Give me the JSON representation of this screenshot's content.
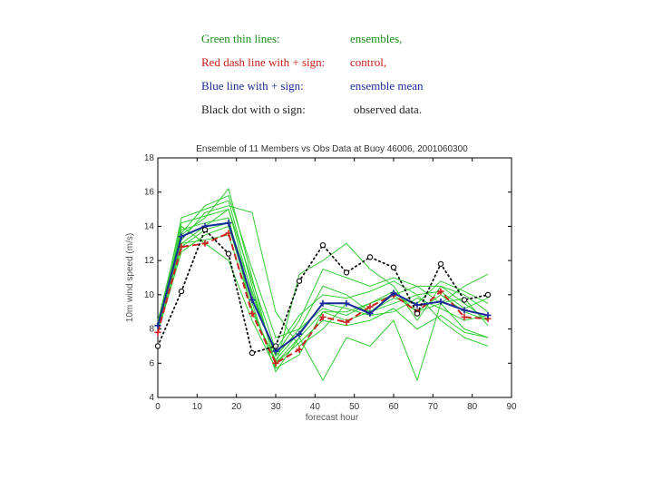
{
  "legend": {
    "green_label": "Green thin lines:",
    "green_value": "ensembles,",
    "red_label": "Red dash line with + sign:",
    "red_value": "control,",
    "blue_label": "Blue line with + sign:",
    "blue_value": "ensemble mean",
    "black_label": "Black dot with o sign:",
    "black_value": "observed data."
  },
  "chart_data": {
    "type": "line",
    "title": "Ensemble of 11 Members vs Obs Data at Buoy 46006, 2001060300",
    "xlabel": "forecast hour",
    "ylabel": "10m wind speed (m/s)",
    "xlim": [
      0,
      90
    ],
    "ylim": [
      4,
      18
    ],
    "xticks": [
      0,
      10,
      20,
      30,
      40,
      50,
      60,
      70,
      80,
      90
    ],
    "yticks": [
      4,
      6,
      8,
      10,
      12,
      14,
      16,
      18
    ],
    "grid": false,
    "colors": {
      "ensemble": "#33cc33",
      "control": "#cc2222",
      "mean": "#1a2a99",
      "observed": "#111111"
    },
    "ensembles": [
      {
        "x": [
          0,
          6,
          12,
          18,
          24,
          30,
          36,
          42,
          48,
          54,
          60,
          66,
          72,
          78,
          84
        ],
        "y": [
          8.0,
          14.5,
          15.0,
          15.5,
          10.5,
          6.0,
          7.5,
          9.0,
          9.0,
          9.5,
          10.0,
          9.0,
          10.0,
          9.0,
          8.5
        ]
      },
      {
        "x": [
          0,
          6,
          12,
          18,
          24,
          30,
          36,
          42,
          48,
          54,
          60,
          66,
          72,
          78,
          84
        ],
        "y": [
          8.5,
          13.5,
          14.5,
          16.2,
          11.0,
          5.8,
          11.2,
          12.0,
          13.0,
          11.5,
          10.5,
          8.5,
          10.5,
          9.5,
          8.5
        ]
      },
      {
        "x": [
          0,
          6,
          12,
          18,
          24,
          30,
          36,
          42,
          48,
          54,
          60,
          66,
          72,
          78,
          84
        ],
        "y": [
          8.2,
          13.0,
          14.0,
          15.0,
          10.0,
          6.5,
          8.5,
          11.5,
          11.0,
          10.5,
          11.0,
          10.5,
          9.5,
          10.5,
          11.2
        ]
      },
      {
        "x": [
          0,
          6,
          12,
          18,
          24,
          30,
          36,
          42,
          48,
          54,
          60,
          66,
          72,
          78,
          84
        ],
        "y": [
          7.8,
          12.5,
          13.5,
          14.0,
          9.5,
          5.5,
          7.5,
          5.0,
          7.5,
          7.0,
          8.5,
          5.0,
          9.5,
          8.0,
          7.5
        ]
      },
      {
        "x": [
          0,
          6,
          12,
          18,
          24,
          30,
          36,
          42,
          48,
          54,
          60,
          66,
          72,
          78,
          84
        ],
        "y": [
          8.0,
          14.0,
          13.0,
          12.0,
          8.5,
          5.7,
          6.5,
          9.0,
          8.5,
          9.0,
          9.5,
          10.0,
          8.5,
          7.5,
          7.0
        ]
      },
      {
        "x": [
          0,
          6,
          12,
          18,
          24,
          30,
          36,
          42,
          48,
          54,
          60,
          66,
          72,
          78,
          84
        ],
        "y": [
          8.3,
          13.2,
          14.8,
          15.2,
          14.8,
          9.0,
          7.0,
          8.0,
          9.5,
          9.0,
          10.0,
          10.5,
          10.5,
          10.0,
          9.0
        ]
      },
      {
        "x": [
          0,
          6,
          12,
          18,
          24,
          30,
          36,
          42,
          48,
          54,
          60,
          66,
          72,
          78,
          84
        ],
        "y": [
          8.0,
          13.8,
          14.2,
          14.5,
          9.0,
          6.2,
          7.8,
          9.5,
          9.2,
          8.8,
          9.0,
          9.8,
          9.2,
          8.5,
          8.8
        ]
      },
      {
        "x": [
          0,
          6,
          12,
          18,
          24,
          30,
          36,
          42,
          48,
          54,
          60,
          66,
          72,
          78,
          84
        ],
        "y": [
          7.9,
          12.8,
          13.8,
          14.2,
          10.2,
          6.4,
          8.0,
          9.2,
          8.8,
          9.5,
          10.2,
          9.0,
          9.5,
          9.8,
          8.2
        ]
      },
      {
        "x": [
          0,
          6,
          12,
          18,
          24,
          30,
          36,
          42,
          48,
          54,
          60,
          66,
          72,
          78,
          84
        ],
        "y": [
          8.1,
          13.6,
          15.2,
          15.8,
          11.5,
          7.5,
          8.0,
          10.5,
          10.0,
          9.0,
          9.8,
          9.5,
          10.8,
          10.2,
          9.5
        ]
      },
      {
        "x": [
          0,
          6,
          12,
          18,
          24,
          30,
          36,
          42,
          48,
          54,
          60,
          66,
          72,
          78,
          84
        ],
        "y": [
          8.0,
          13.0,
          13.2,
          13.5,
          9.2,
          6.0,
          7.2,
          8.5,
          8.2,
          8.5,
          9.2,
          8.0,
          8.8,
          7.8,
          7.5
        ]
      },
      {
        "x": [
          0,
          6,
          12,
          18,
          24,
          30,
          36,
          42,
          48,
          54,
          60,
          66,
          72,
          78,
          84
        ],
        "y": [
          8.4,
          14.2,
          14.6,
          15.0,
          10.8,
          6.8,
          8.8,
          10.0,
          9.8,
          10.2,
          10.8,
          10.0,
          10.2,
          9.2,
          9.8
        ]
      }
    ],
    "control": {
      "x": [
        0,
        6,
        12,
        18,
        24,
        30,
        36,
        42,
        48,
        54,
        60,
        66,
        72,
        78,
        84
      ],
      "y": [
        7.8,
        12.8,
        13.0,
        13.6,
        8.9,
        6.0,
        6.8,
        8.7,
        8.4,
        9.3,
        10.0,
        9.0,
        10.2,
        8.7,
        8.6
      ]
    },
    "mean": {
      "x": [
        0,
        6,
        12,
        18,
        24,
        30,
        36,
        42,
        48,
        54,
        60,
        66,
        72,
        78,
        84
      ],
      "y": [
        8.2,
        13.4,
        14.0,
        14.2,
        9.7,
        6.7,
        7.7,
        9.5,
        9.5,
        8.9,
        10.1,
        9.4,
        9.6,
        9.1,
        8.8
      ]
    },
    "observed": {
      "x": [
        0,
        6,
        12,
        18,
        24,
        30,
        36,
        42,
        48,
        54,
        60,
        66,
        72,
        78,
        84
      ],
      "y": [
        7.0,
        10.2,
        13.8,
        12.4,
        6.6,
        7.0,
        10.8,
        12.9,
        11.3,
        12.2,
        11.6,
        8.9,
        11.8,
        9.7,
        10.0
      ]
    }
  }
}
